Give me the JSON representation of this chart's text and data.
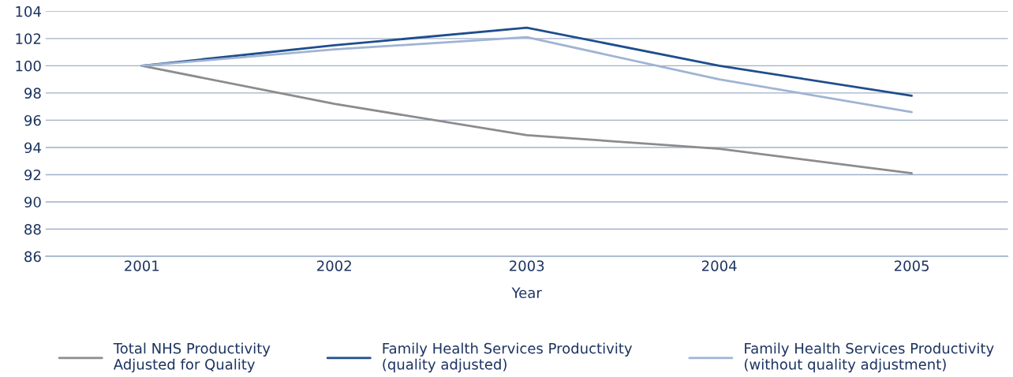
{
  "chart_data": {
    "type": "line",
    "xlabel": "Year",
    "categories": [
      "2001",
      "2002",
      "2003",
      "2004",
      "2005"
    ],
    "series": [
      {
        "name": "Total NHS Productivity\nAdjusted for Quality",
        "color": "#8c8c8c",
        "values": [
          100,
          97.2,
          94.9,
          93.9,
          92.1
        ]
      },
      {
        "name": "Family Health Services Productivity\n(quality adjusted)",
        "color": "#1f4e8c",
        "values": [
          100,
          101.5,
          102.8,
          100.0,
          97.8
        ]
      },
      {
        "name": "Family Health Services Productivity\n(without quality adjustment)",
        "color": "#9fb4d3",
        "values": [
          100,
          101.2,
          102.1,
          99.0,
          96.6
        ]
      }
    ],
    "ylim": [
      86,
      104
    ],
    "yticks": [
      86,
      88,
      90,
      92,
      94,
      96,
      98,
      100,
      102,
      104
    ],
    "grid": "y",
    "legend": "bottom",
    "marker": "none",
    "line_style": "solid"
  }
}
